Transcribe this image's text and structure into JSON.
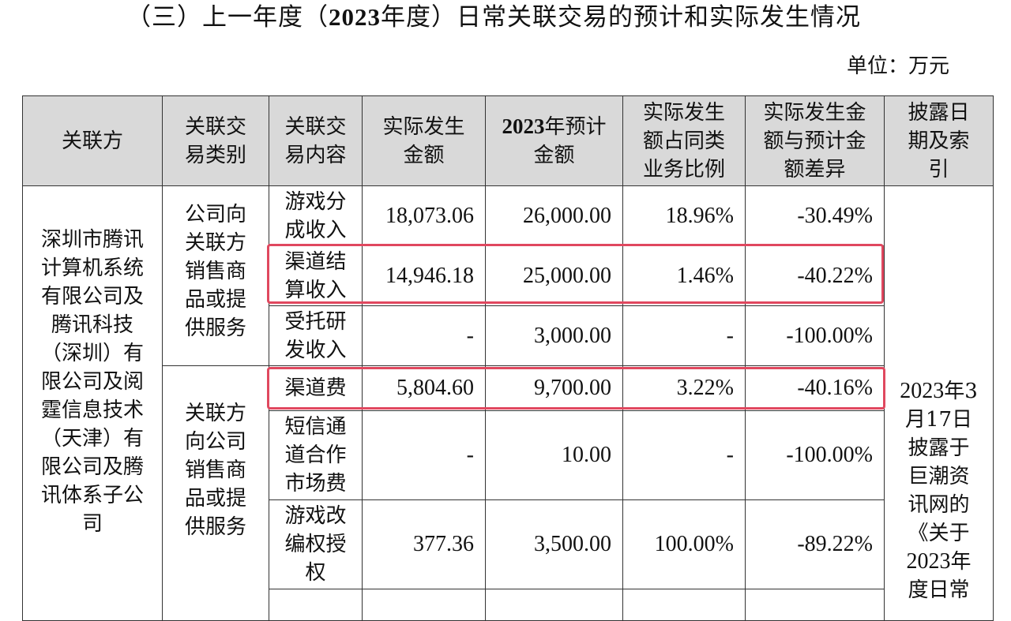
{
  "heading": {
    "prefix": "（三）上一年度（",
    "year": "2023",
    "suffix": "年度）日常关联交易的预计和实际发生情况"
  },
  "unit": "单位：万元",
  "table": {
    "headers": {
      "party": "关联方",
      "type": "关联交易类别",
      "content": "关联交易内容",
      "actual": "实际发生金额",
      "forecast_year": "2023",
      "forecast_rest": "年预计金额",
      "ratio": "实际发生额占同类业务比例",
      "diff": "实际发生金额与预计金额差异",
      "disclosure": "披露日期及索引"
    },
    "party": "深圳市腾讯计算机系统有限公司及腾讯科技（深圳）有限公司及阅霆信息技术（天津）有限公司及腾讯体系子公司",
    "type_sales": "公司向关联方销售商品或提供服务",
    "type_purchase": "关联方向公司销售商品或提供服务",
    "disclosure": {
      "year1": "2023",
      "text1": "年3月17日披露于巨潮资讯网的《关于",
      "year2": "2023",
      "text2": "年度日常"
    },
    "rows": [
      {
        "content": "游戏分成收入",
        "actual": "18,073.06",
        "forecast": "26,000.00",
        "ratio": "18.96%",
        "diff": "-30.49%"
      },
      {
        "content": "渠道结算收入",
        "actual": "14,946.18",
        "forecast": "25,000.00",
        "ratio": "1.46%",
        "diff": "-40.22%"
      },
      {
        "content": "受托研发收入",
        "actual": "-",
        "forecast": "3,000.00",
        "ratio": "-",
        "diff": "-100.00%"
      },
      {
        "content": "渠道费",
        "actual": "5,804.60",
        "forecast": "9,700.00",
        "ratio": "3.22%",
        "diff": "-40.16%"
      },
      {
        "content": "短信通道合作市场费",
        "actual": "-",
        "forecast": "10.00",
        "ratio": "-",
        "diff": "-100.00%"
      },
      {
        "content": "游戏改编权授权",
        "actual": "377.36",
        "forecast": "3,500.00",
        "ratio": "100.00%",
        "diff": "-89.22%"
      }
    ]
  },
  "colors": {
    "header_bg": "#d9d9d9",
    "highlight": "#e0485f"
  }
}
